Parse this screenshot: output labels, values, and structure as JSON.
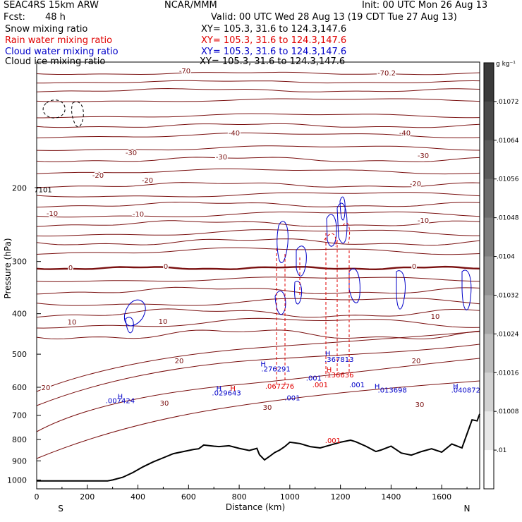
{
  "header": {
    "model": "SEAC4RS 15km ARW",
    "org": "NCAR/MMM",
    "init": "Init: 00 UTC Mon 26 Aug 13",
    "fcst_label": "Fcst:",
    "fcst_value": "48 h",
    "valid": "Valid: 00 UTC Wed 28 Aug 13 (19 CDT Tue 27 Aug 13)",
    "fields": [
      {
        "name": "Snow mixing ratio",
        "xy": "XY= 105.3, 31.6 to 124.3,147.6",
        "color": "#000000"
      },
      {
        "name": "Rain water mixing ratio",
        "xy": "XY= 105.3, 31.6 to 124.3,147.6",
        "color": "#e00000"
      },
      {
        "name": "Cloud water mixing ratio",
        "xy": "XY= 105.3, 31.6 to 124.3,147.6",
        "color": "#0000c8"
      },
      {
        "name": "Cloud ice mixing ratio",
        "xy": "XY= 105.3, 31.6 to 124.3,147.6",
        "color": "#000000"
      }
    ]
  },
  "chart_data": {
    "type": "line",
    "xlabel": "Distance (km)",
    "ylabel": "Pressure (hPa)",
    "xlim": [
      0,
      1750
    ],
    "ylim": [
      1050,
      100
    ],
    "y_scale": "log",
    "x_ticks": [
      0,
      200,
      400,
      600,
      800,
      1000,
      1200,
      1400,
      1600
    ],
    "y_ticks": [
      200,
      300,
      400,
      500,
      600,
      700,
      800,
      900,
      1000
    ],
    "x_end_labels": {
      "left": "S",
      "right": "N"
    },
    "temperature_contours": {
      "units": "C",
      "levels": [
        -70,
        -40,
        -30,
        -20,
        -10,
        0,
        10,
        20,
        30
      ],
      "labels": [
        "-70",
        "-70.2",
        "-40",
        "-30",
        "-20",
        "-10",
        "0",
        "10",
        "20",
        "30"
      ],
      "color": "#7a1010",
      "zero_line_color": "#7a1010"
    },
    "terrain": {
      "x": [
        0,
        280,
        300,
        340,
        380,
        420,
        460,
        500,
        540,
        580,
        620,
        640,
        660,
        700,
        720,
        760,
        800,
        840,
        870,
        880,
        900,
        920,
        940,
        960,
        980,
        1000,
        1040,
        1080,
        1120,
        1160,
        1200,
        1240,
        1260,
        1300,
        1340,
        1360,
        1400,
        1440,
        1480,
        1520,
        1560,
        1600,
        1640,
        1680,
        1720,
        1740,
        1750
      ],
      "pressure": [
        1005,
        1005,
        1000,
        985,
        960,
        930,
        905,
        885,
        865,
        855,
        845,
        842,
        825,
        830,
        832,
        828,
        840,
        850,
        840,
        870,
        895,
        878,
        860,
        848,
        832,
        812,
        818,
        832,
        838,
        825,
        812,
        803,
        810,
        830,
        855,
        848,
        830,
        862,
        872,
        855,
        842,
        858,
        820,
        838,
        718,
        722,
        695
      ]
    },
    "series": [
      {
        "name": "Snow mixing ratio",
        "color": "#000000"
      },
      {
        "name": "Rain water mixing ratio",
        "color": "#e00000"
      },
      {
        "name": "Cloud water mixing ratio",
        "color": "#0000c8"
      },
      {
        "name": "Cloud ice mixing ratio",
        "color": "#000000"
      }
    ],
    "annotations": [
      {
        "text": "H",
        "x": 330,
        "p": 640,
        "color": "#0000c8"
      },
      {
        "text": ".007424",
        "x": 330,
        "p": 655,
        "color": "#0000c8"
      },
      {
        "text": "H",
        "x": 720,
        "p": 612,
        "color": "#0000c8"
      },
      {
        "text": ".029643",
        "x": 750,
        "p": 627,
        "color": "#0000c8"
      },
      {
        "text": "H",
        "x": 775,
        "p": 612,
        "color": "#e00000"
      },
      {
        "text": "H",
        "x": 895,
        "p": 535,
        "color": "#0000c8"
      },
      {
        "text": ".276291",
        "x": 945,
        "p": 550,
        "color": "#0000c8"
      },
      {
        "text": ".067276",
        "x": 960,
        "p": 605,
        "color": "#e00000"
      },
      {
        "text": "H",
        "x": 1150,
        "p": 505,
        "color": "#0000c8"
      },
      {
        "text": ".367813",
        "x": 1195,
        "p": 522,
        "color": "#0000c8"
      },
      {
        "text": "H",
        "x": 1155,
        "p": 552,
        "color": "#e00000"
      },
      {
        "text": ".136636",
        "x": 1195,
        "p": 568,
        "color": "#e00000"
      },
      {
        "text": ".001",
        "x": 1010,
        "p": 645,
        "color": "#0000c8"
      },
      {
        "text": ".001",
        "x": 1095,
        "p": 578,
        "color": "#0000c8"
      },
      {
        "text": ".001",
        "x": 1120,
        "p": 600,
        "color": "#e00000"
      },
      {
        "text": ".001",
        "x": 1265,
        "p": 600,
        "color": "#0000c8"
      },
      {
        "text": ".001",
        "x": 1170,
        "p": 815,
        "color": "#e00000"
      },
      {
        "text": "H",
        "x": 1345,
        "p": 605,
        "color": "#0000c8"
      },
      {
        "text": ".013698",
        "x": 1405,
        "p": 618,
        "color": "#0000c8"
      },
      {
        "text": "H",
        "x": 1655,
        "p": 605,
        "color": "#0000c8"
      },
      {
        "text": ".040872",
        "x": 1695,
        "p": 618,
        "color": "#0000c8"
      },
      {
        "text": "7101",
        "x": 25,
        "p": 205,
        "color": "#000000"
      }
    ]
  },
  "colorbar": {
    "units": "g kg⁻¹",
    "labels": [
      ".01072",
      ".01064",
      ".01056",
      ".01048",
      ".0104",
      ".01032",
      ".01024",
      ".01016",
      ".01008",
      ".01"
    ],
    "colors": [
      "#3a3a3a",
      "#4a4a4a",
      "#5a5a5a",
      "#6c6c6c",
      "#7e7e7e",
      "#929292",
      "#a6a6a6",
      "#bcbcbc",
      "#d2d2d2",
      "#e8e8e8",
      "#ffffff"
    ]
  }
}
